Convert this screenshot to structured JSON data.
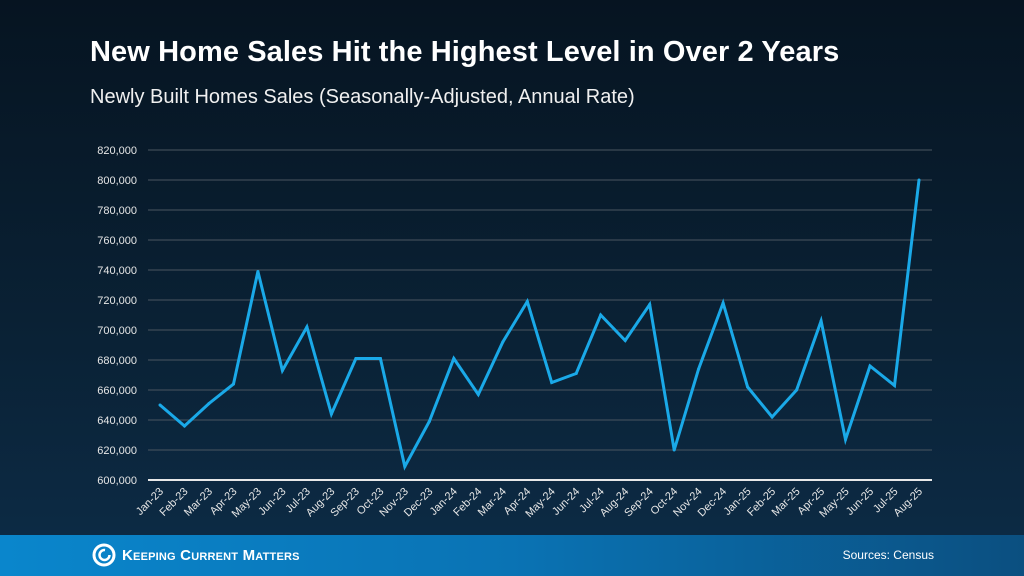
{
  "chart_data": {
    "type": "line",
    "title": "New Home Sales Hit the Highest Level in Over 2 Years",
    "subtitle": "Newly Built Homes Sales (Seasonally-Adjusted, Annual Rate)",
    "xlabel": "",
    "ylabel": "",
    "ylim": [
      600000,
      820000
    ],
    "yticks": [
      "600,000",
      "620,000",
      "640,000",
      "660,000",
      "680,000",
      "700,000",
      "720,000",
      "740,000",
      "760,000",
      "780,000",
      "800,000",
      "820,000"
    ],
    "grid": true,
    "line_color": "#1aa9e8",
    "categories": [
      "Jan-23",
      "Feb-23",
      "Mar-23",
      "Apr-23",
      "May-23",
      "Jun-23",
      "Jul-23",
      "Aug-23",
      "Sep-23",
      "Oct-23",
      "Nov-23",
      "Dec-23",
      "Jan-24",
      "Feb-24",
      "Mar-24",
      "Apr-24",
      "May-24",
      "Jun-24",
      "Jul-24",
      "Aug-24",
      "Sep-24",
      "Oct-24",
      "Nov-24",
      "Dec-24",
      "Jan-25",
      "Feb-25",
      "Mar-25",
      "Apr-25",
      "May-25",
      "Jun-25",
      "Jul-25",
      "Aug-25"
    ],
    "values": [
      650000,
      636000,
      651000,
      664000,
      739000,
      673000,
      702000,
      644000,
      681000,
      681000,
      609000,
      639000,
      681000,
      657000,
      692000,
      719000,
      665000,
      671000,
      710000,
      693000,
      717000,
      620000,
      674000,
      718000,
      662000,
      642000,
      660000,
      706000,
      627000,
      676000,
      663000,
      800000
    ]
  },
  "footer": {
    "logo_text": "Keeping Current Matters",
    "source": "Sources: Census"
  }
}
